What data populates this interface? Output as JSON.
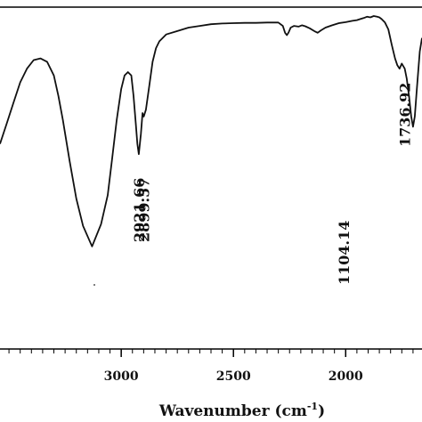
{
  "chart_data": {
    "type": "line",
    "xlabel": "Wavenumber (cm",
    "xlabel_sup": "-1",
    "xlabel_close": ")",
    "xlim": [
      3540,
      1660
    ],
    "x_ticks": [
      {
        "value": 3000,
        "label": "3000"
      },
      {
        "value": 2500,
        "label": "2500"
      },
      {
        "value": 2000,
        "label": "2000"
      }
    ],
    "ylim": [
      0,
      100
    ],
    "y_axis_labels_visible": false,
    "series": [
      {
        "points": [
          [
            3540,
            60
          ],
          [
            3510,
            66
          ],
          [
            3480,
            72
          ],
          [
            3450,
            78
          ],
          [
            3420,
            82
          ],
          [
            3390,
            84.5
          ],
          [
            3360,
            85
          ],
          [
            3330,
            84
          ],
          [
            3300,
            80
          ],
          [
            3280,
            74
          ],
          [
            3260,
            67
          ],
          [
            3230,
            55
          ],
          [
            3200,
            44
          ],
          [
            3170,
            36
          ],
          [
            3130,
            30
          ],
          [
            3090,
            36.5
          ],
          [
            3060,
            45
          ],
          [
            3040,
            56
          ],
          [
            3020,
            67
          ],
          [
            3000,
            76
          ],
          [
            2985,
            80
          ],
          [
            2970,
            81
          ],
          [
            2955,
            80
          ],
          [
            2945,
            74
          ],
          [
            2935,
            66
          ],
          [
            2928,
            60
          ],
          [
            2921.66,
            57
          ],
          [
            2912,
            63
          ],
          [
            2905,
            69
          ],
          [
            2899.57,
            68
          ],
          [
            2890,
            70
          ],
          [
            2875,
            77
          ],
          [
            2860,
            84
          ],
          [
            2845,
            88
          ],
          [
            2830,
            90
          ],
          [
            2800,
            92
          ],
          [
            2750,
            93
          ],
          [
            2700,
            94
          ],
          [
            2650,
            94.5
          ],
          [
            2600,
            95
          ],
          [
            2550,
            95.2
          ],
          [
            2500,
            95.3
          ],
          [
            2450,
            95.4
          ],
          [
            2400,
            95.4
          ],
          [
            2350,
            95.5
          ],
          [
            2300,
            95.5
          ],
          [
            2280,
            94.5
          ],
          [
            2270,
            92.5
          ],
          [
            2262,
            91.8
          ],
          [
            2255,
            92.5
          ],
          [
            2245,
            94
          ],
          [
            2230,
            94.5
          ],
          [
            2210,
            94.3
          ],
          [
            2195,
            94.7
          ],
          [
            2180,
            94.4
          ],
          [
            2160,
            93.8
          ],
          [
            2140,
            93
          ],
          [
            2125,
            92.5
          ],
          [
            2110,
            93.2
          ],
          [
            2090,
            94
          ],
          [
            2060,
            94.7
          ],
          [
            2030,
            95.3
          ],
          [
            2000,
            95.6
          ],
          [
            1970,
            96
          ],
          [
            1950,
            96.2
          ],
          [
            1935,
            96.5
          ],
          [
            1920,
            96.8
          ],
          [
            1905,
            97.2
          ],
          [
            1890,
            97
          ],
          [
            1875,
            97.4
          ],
          [
            1860,
            97.2
          ],
          [
            1850,
            97
          ],
          [
            1840,
            96.5
          ],
          [
            1825,
            95.5
          ],
          [
            1810,
            93.5
          ],
          [
            1795,
            89
          ],
          [
            1780,
            85
          ],
          [
            1770,
            83
          ],
          [
            1760,
            82
          ],
          [
            1750,
            83.5
          ],
          [
            1736.92,
            82
          ],
          [
            1728,
            79
          ],
          [
            1718,
            74
          ],
          [
            1708,
            68
          ],
          [
            1700,
            65
          ],
          [
            1692,
            68
          ],
          [
            1684,
            75
          ],
          [
            1676,
            82
          ],
          [
            1670,
            87
          ],
          [
            1660,
            91
          ]
        ]
      }
    ],
    "peak_labels": [
      {
        "x": 2921.66,
        "text": "2921.66",
        "y_level": "middle-upper"
      },
      {
        "x": 2899.57,
        "text": "2899.57",
        "y_level": "middle-upper"
      },
      {
        "x": 1104.14,
        "text": "1104.14",
        "y_level": "middle-lower",
        "display_x": 2010
      },
      {
        "x": 1736.92,
        "text": "1736.92",
        "y_level": "upper"
      }
    ],
    "grid": false,
    "legend": "none"
  }
}
